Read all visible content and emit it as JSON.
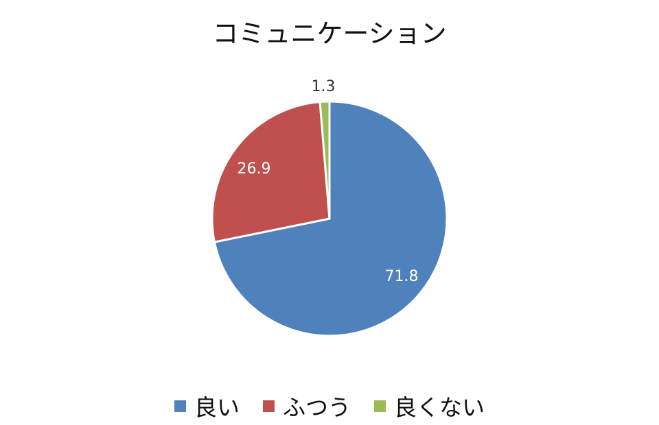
{
  "chart_data": {
    "type": "pie",
    "title": "コミュニケーション",
    "categories": [
      "良い",
      "ふつう",
      "良くない"
    ],
    "values": [
      71.8,
      26.9,
      1.3
    ],
    "colors": [
      "#4F81BD",
      "#C0504D",
      "#9BBB59"
    ],
    "data_labels": [
      "71.8",
      "26.9",
      "1.3"
    ],
    "start_angle": "top, clockwise",
    "legend_position": "bottom"
  }
}
